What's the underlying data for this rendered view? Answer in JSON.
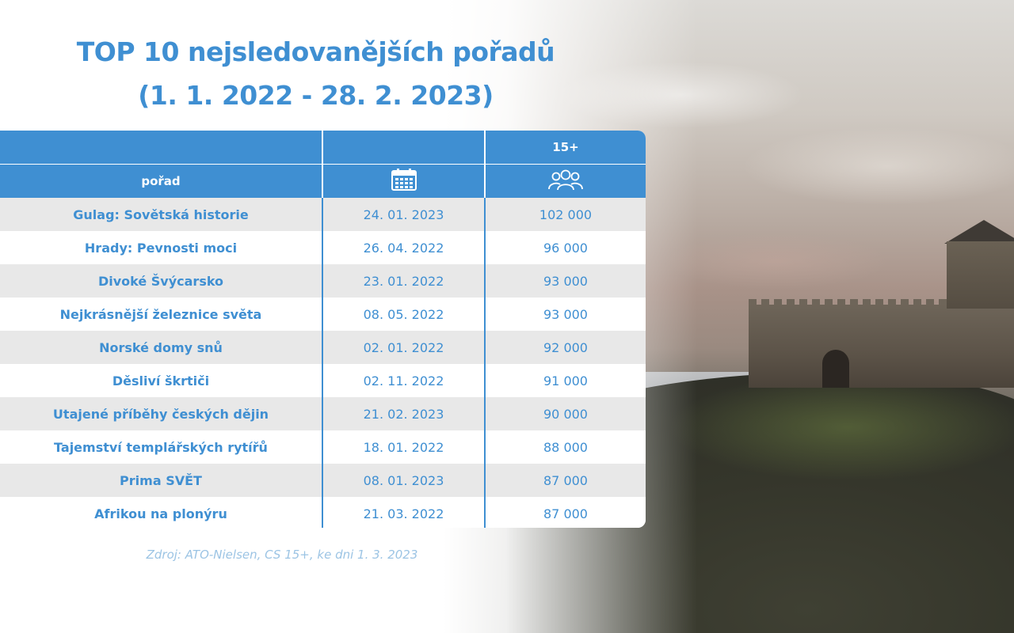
{
  "title": {
    "line1": "TOP 10 nejsledovanějších pořadů",
    "line2": "(1. 1. 2022 - 28. 2. 2023)"
  },
  "table": {
    "header_top": {
      "col1": "",
      "col2": "",
      "col3": "15+"
    },
    "header_bottom": {
      "col1": "pořad",
      "col2_icon": "calendar-icon",
      "col3_icon": "people-icon"
    },
    "rows": [
      {
        "name": "Gulag: Sovětská historie",
        "date": "24. 01. 2023",
        "value": "102 000"
      },
      {
        "name": "Hrady: Pevnosti moci",
        "date": "26. 04. 2022",
        "value": "96 000"
      },
      {
        "name": "Divoké Švýcarsko",
        "date": "23. 01. 2022",
        "value": "93 000"
      },
      {
        "name": "Nejkrásnější železnice světa",
        "date": "08. 05. 2022",
        "value": "93 000"
      },
      {
        "name": "Norské domy snů",
        "date": "02. 01. 2022",
        "value": "92 000"
      },
      {
        "name": "Děsliví škrtiči",
        "date": "02. 11. 2022",
        "value": "91 000"
      },
      {
        "name": "Utajené příběhy českých dějin",
        "date": "21. 02. 2023",
        "value": "90 000"
      },
      {
        "name": "Tajemství templářských rytířů",
        "date": "18. 01. 2022",
        "value": "88 000"
      },
      {
        "name": "Prima SVĚT",
        "date": "08. 01. 2023",
        "value": "87 000"
      },
      {
        "name": "Afrikou na plonýru",
        "date": "21. 03. 2022",
        "value": "87 000"
      }
    ]
  },
  "source": "Zdroj: ATO-Nielsen, CS 15+, ke dni 1. 3. 2023",
  "colors": {
    "accent": "#3f8fd2",
    "stripe": "#e8e8e8",
    "source_text": "#9cc4e4"
  }
}
